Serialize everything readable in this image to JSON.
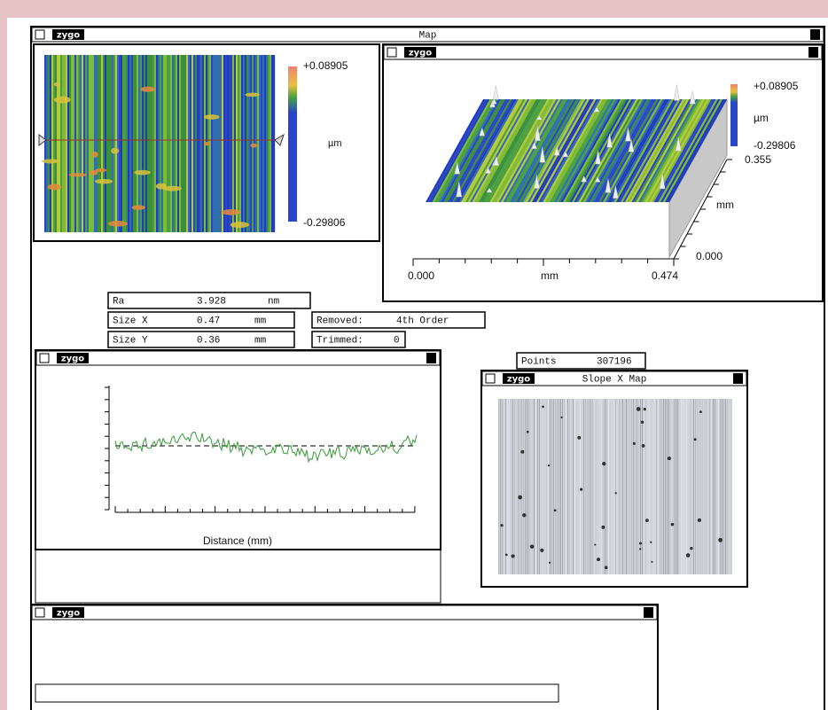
{
  "main_window": {
    "logo": "zygo",
    "title": "Map"
  },
  "map_2d": {
    "scale_max": "+0.08905",
    "unit": "µm",
    "scale_min": "-0.29806"
  },
  "map_3d": {
    "logo": "zygo",
    "scale_max": "+0.08905",
    "unit": "µm",
    "scale_min": "-0.29806",
    "y_max": "0.355",
    "y_unit": "mm",
    "y_min": "0.000",
    "x_min": "0.000",
    "x_unit": "mm",
    "x_max": "0.474"
  },
  "results": {
    "ra": {
      "label": "Ra",
      "value": "3.928",
      "unit": "nm"
    },
    "size_x": {
      "label": "Size X",
      "value": "0.47",
      "unit": "mm"
    },
    "size_y": {
      "label": "Size Y",
      "value": "0.36",
      "unit": "mm"
    },
    "removed": {
      "label": "Removed:",
      "value": "4th Order"
    },
    "trimmed": {
      "label": "Trimmed:",
      "value": "0"
    },
    "points": {
      "label": "Points",
      "value": "307196"
    }
  },
  "profile_window": {
    "logo": "zygo",
    "x_label": "Distance (mm)"
  },
  "slope_window": {
    "logo": "zygo",
    "title": "Slope X Map"
  },
  "bottom_window": {
    "logo": "zygo"
  }
}
